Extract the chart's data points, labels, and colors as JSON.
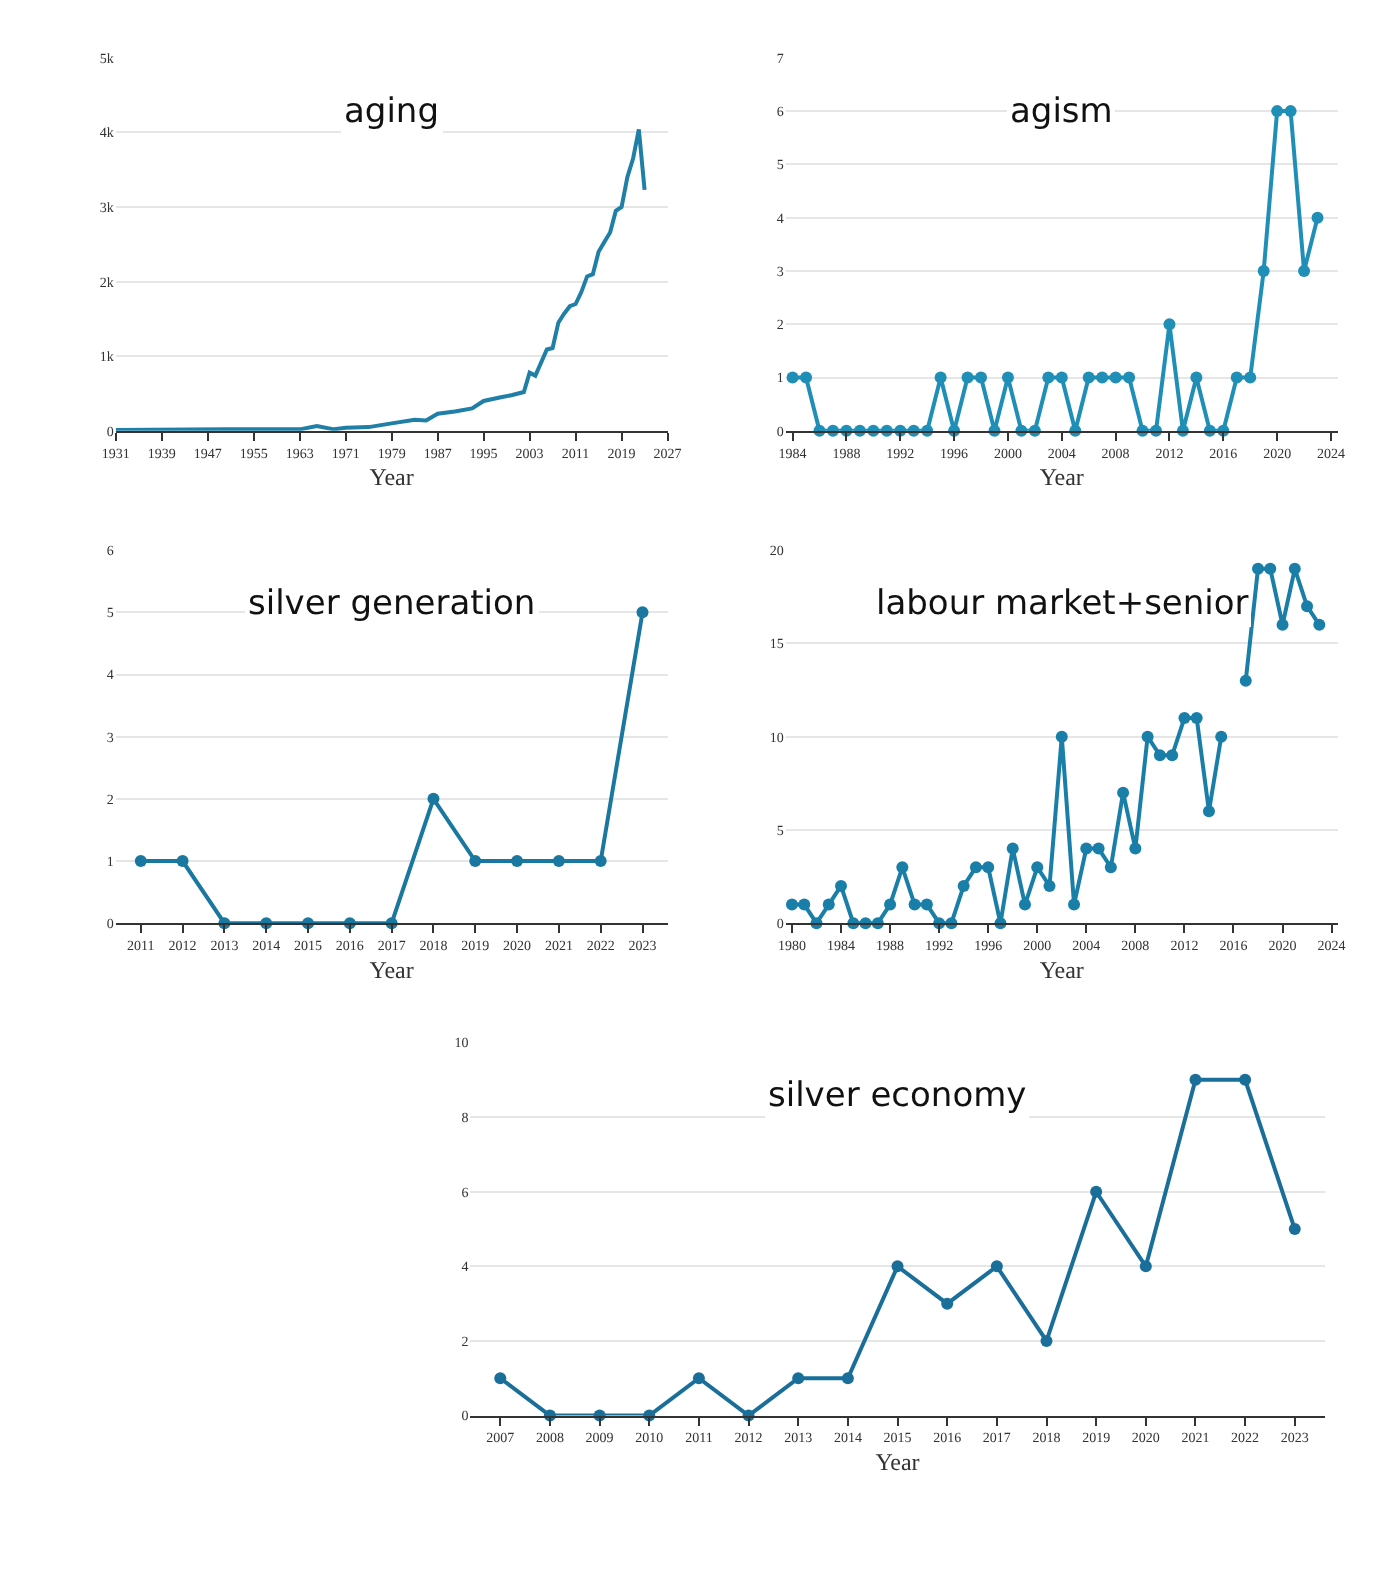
{
  "chart_data": [
    {
      "type": "line",
      "title": "aging",
      "xlabel": "Year",
      "color": "#1f7fa6",
      "marker": "none",
      "grid": "y",
      "x": [
        1931,
        1950,
        1963,
        1966,
        1969,
        1971,
        1975,
        1979,
        1983,
        1985,
        1987,
        1990,
        1993,
        1995,
        1998,
        2000,
        2002,
        2003,
        2004,
        2006,
        2007,
        2008,
        2009,
        2010,
        2011,
        2012,
        2013,
        2014,
        2015,
        2016,
        2017,
        2018,
        2019,
        2020,
        2021,
        2022,
        2023
      ],
      "values": [
        10,
        20,
        20,
        65,
        20,
        40,
        50,
        100,
        150,
        140,
        230,
        260,
        300,
        400,
        450,
        480,
        520,
        780,
        740,
        1090,
        1110,
        1450,
        1570,
        1670,
        1700,
        1860,
        2070,
        2100,
        2400,
        2530,
        2660,
        2950,
        3000,
        3400,
        3650,
        4040,
        3230
      ],
      "xlim": [
        1931,
        2027
      ],
      "xticks": [
        1931,
        1939,
        1947,
        1955,
        1963,
        1971,
        1979,
        1987,
        1995,
        2003,
        2011,
        2019,
        2027
      ],
      "ylim": [
        0,
        5000
      ],
      "yticks": [
        0,
        {
          "value": 1000,
          "label": "1k"
        },
        {
          "value": 2000,
          "label": "2k"
        },
        {
          "value": 3000,
          "label": "3k"
        },
        {
          "value": 4000,
          "label": "4k"
        },
        {
          "value": 5000,
          "label": "5k"
        }
      ]
    },
    {
      "type": "line",
      "title": "agism",
      "xlabel": "Year",
      "color": "#1f8fb8",
      "marker": "circle",
      "grid": "y",
      "x": [
        1984,
        1985,
        1986,
        1987,
        1988,
        1989,
        1990,
        1991,
        1992,
        1993,
        1994,
        1995,
        1996,
        1997,
        1998,
        1999,
        2000,
        2001,
        2002,
        2003,
        2004,
        2005,
        2006,
        2007,
        2008,
        2009,
        2010,
        2011,
        2012,
        2013,
        2014,
        2015,
        2016,
        2017,
        2018,
        2019,
        2020,
        2021,
        2022,
        2023
      ],
      "values": [
        1,
        1,
        0,
        0,
        0,
        0,
        0,
        0,
        0,
        0,
        0,
        1,
        0,
        1,
        1,
        0,
        1,
        0,
        0,
        1,
        1,
        0,
        1,
        1,
        1,
        1,
        0,
        0,
        2,
        0,
        1,
        0,
        0,
        1,
        1,
        3,
        6,
        6,
        3,
        4
      ],
      "xlim": [
        1983.5,
        2024.5
      ],
      "xticks": [
        1984,
        1988,
        1992,
        1996,
        2000,
        2004,
        2008,
        2012,
        2016,
        2020,
        2024
      ],
      "ylim": [
        0,
        7
      ],
      "yticks": [
        0,
        1,
        2,
        3,
        4,
        5,
        6,
        7
      ]
    },
    {
      "type": "line",
      "title": "silver generation",
      "xlabel": "Year",
      "color": "#1a78a0",
      "marker": "circle",
      "grid": "y",
      "categories": [
        "2011",
        "2012",
        "2013",
        "2014",
        "2015",
        "2016",
        "2017",
        "2018",
        "2019",
        "2020",
        "2021",
        "2022",
        "2023"
      ],
      "values": [
        1,
        1,
        0,
        0,
        0,
        0,
        0,
        2,
        1,
        1,
        1,
        1,
        5
      ],
      "ylim": [
        0,
        6
      ],
      "yticks": [
        0,
        1,
        2,
        3,
        4,
        5,
        6
      ]
    },
    {
      "type": "line",
      "title": "labour market+senior",
      "xlabel": "Year",
      "color": "#1a7fa8",
      "marker": "circle",
      "grid": "y",
      "x": [
        1980,
        1981,
        1982,
        1983,
        1984,
        1985,
        1986,
        1987,
        1988,
        1989,
        1990,
        1991,
        1992,
        1993,
        1994,
        1995,
        1996,
        1997,
        1998,
        1999,
        2000,
        2001,
        2002,
        2003,
        2004,
        2005,
        2006,
        2007,
        2008,
        2009,
        2010,
        2011,
        2012,
        2013,
        2014,
        2015,
        2016,
        2017,
        2018,
        2019,
        2020,
        2021,
        2022,
        2023
      ],
      "values": [
        1,
        1,
        0,
        1,
        2,
        0,
        0,
        0,
        1,
        3,
        1,
        1,
        0,
        0,
        2,
        3,
        3,
        0,
        4,
        1,
        3,
        2,
        10,
        1,
        4,
        4,
        3,
        7,
        4,
        10,
        9,
        9,
        11,
        11,
        6,
        10,
        null,
        13,
        19,
        19,
        16,
        19,
        17,
        16
      ],
      "xlim": [
        1979.5,
        2024.5
      ],
      "xticks": [
        1980,
        1984,
        1988,
        1992,
        1996,
        2000,
        2004,
        2008,
        2012,
        2016,
        2020,
        2024
      ],
      "ylim": [
        0,
        20
      ],
      "yticks": [
        0,
        5,
        10,
        15,
        20
      ]
    },
    {
      "type": "line",
      "title": "silver economy",
      "xlabel": "Year",
      "color": "#1a6f9a",
      "marker": "circle",
      "grid": "y",
      "categories": [
        "2007",
        "2008",
        "2009",
        "2010",
        "2011",
        "2012",
        "2013",
        "2014",
        "2015",
        "2016",
        "2017",
        "2018",
        "2019",
        "2020",
        "2021",
        "2022",
        "2023"
      ],
      "values": [
        1,
        0,
        0,
        0,
        1,
        0,
        1,
        1,
        4,
        3,
        4,
        2,
        6,
        4,
        9,
        9,
        5
      ],
      "ylim": [
        0,
        10
      ],
      "yticks": [
        0,
        2,
        4,
        6,
        8,
        10
      ]
    }
  ]
}
